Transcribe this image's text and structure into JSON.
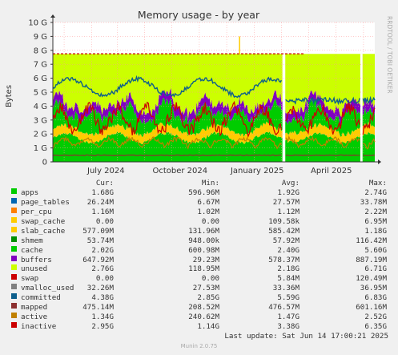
{
  "chart_data": {
    "type": "area",
    "title": "Memory usage - by year",
    "ylabel": "Bytes",
    "side_label": "RRDTOOL / TOBI OETIKER",
    "y_ticks": [
      "0",
      "1 G",
      "2 G",
      "3 G",
      "4 G",
      "5 G",
      "6 G",
      "7 G",
      "8 G",
      "9 G",
      "10 G"
    ],
    "x_ticks": [
      "July 2024",
      "October 2024",
      "January 2025",
      "April 2025"
    ],
    "ylim_bytes": [
      0,
      10000000000
    ],
    "grid": true,
    "series": [
      {
        "name": "apps",
        "color": "#00cc00",
        "cur": "1.68G",
        "min": "596.96M",
        "avg": "1.92G",
        "max": "2.74G"
      },
      {
        "name": "page_tables",
        "color": "#0066b3",
        "cur": "26.24M",
        "min": "6.67M",
        "avg": "27.57M",
        "max": "33.78M"
      },
      {
        "name": "per_cpu",
        "color": "#ff8000",
        "cur": "1.16M",
        "min": "1.02M",
        "avg": "1.12M",
        "max": "2.22M"
      },
      {
        "name": "swap_cache",
        "color": "#ffcc00",
        "cur": "0.00",
        "min": "0.00",
        "avg": "109.58k",
        "max": "6.95M"
      },
      {
        "name": "slab_cache",
        "color": "#ffcc00",
        "cur": "577.09M",
        "min": "131.96M",
        "avg": "585.42M",
        "max": "1.18G"
      },
      {
        "name": "shmem",
        "color": "#008f00",
        "cur": "53.74M",
        "min": "948.00k",
        "avg": "57.92M",
        "max": "116.42M"
      },
      {
        "name": "cache",
        "color": "#00cc00",
        "cur": "2.02G",
        "min": "600.98M",
        "avg": "2.40G",
        "max": "5.60G"
      },
      {
        "name": "buffers",
        "color": "#8000c0",
        "cur": "647.92M",
        "min": "29.23M",
        "avg": "578.37M",
        "max": "887.19M"
      },
      {
        "name": "unused",
        "color": "#ccff00",
        "cur": "2.76G",
        "min": "118.95M",
        "avg": "2.18G",
        "max": "6.71G"
      },
      {
        "name": "swap",
        "color": "#cc0000",
        "cur": "0.00",
        "min": "0.00",
        "avg": "5.84M",
        "max": "120.49M"
      },
      {
        "name": "vmalloc_used",
        "color": "#808080",
        "cur": "32.26M",
        "min": "27.53M",
        "avg": "33.36M",
        "max": "36.95M"
      },
      {
        "name": "committed",
        "color": "#0d5f8c",
        "cur": "4.38G",
        "min": "2.85G",
        "avg": "5.59G",
        "max": "6.83G"
      },
      {
        "name": "mapped",
        "color": "#8c3030",
        "cur": "475.14M",
        "min": "208.52M",
        "avg": "476.57M",
        "max": "601.16M"
      },
      {
        "name": "active",
        "color": "#c08000",
        "cur": "1.34G",
        "min": "240.62M",
        "avg": "1.47G",
        "max": "2.52G"
      },
      {
        "name": "inactive",
        "color": "#cc0000",
        "cur": "2.95G",
        "min": "1.14G",
        "avg": "3.38G",
        "max": "6.35G"
      }
    ]
  },
  "legend_headers": {
    "cur": "Cur:",
    "min": "Min:",
    "avg": "Avg:",
    "max": "Max:"
  },
  "footer": {
    "last_update": "Last update: Sat Jun 14 17:00:21 2025",
    "version": "Munin 2.0.75"
  }
}
